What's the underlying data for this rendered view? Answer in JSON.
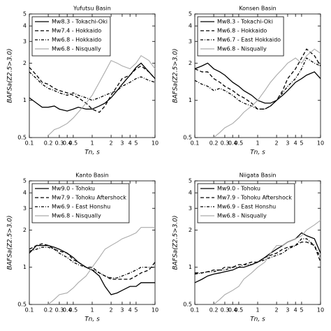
{
  "chart_data": [
    {
      "type": "line",
      "title": "Yufutsu Basin",
      "x_label": "Tn, s",
      "y_label": "BAFSa(Z2.5>3.0)",
      "xscale": "log",
      "yscale": "log",
      "legend": "upper left",
      "xlim": [
        0.1,
        10
      ],
      "ylim": [
        0.5,
        5
      ],
      "xticks": [
        0.1,
        0.2,
        0.3,
        0.4,
        0.5,
        1,
        2,
        3,
        4,
        5,
        10
      ],
      "yticks": [
        0.5,
        1,
        2,
        3,
        4,
        5
      ],
      "x": [
        0.1,
        0.13,
        0.16,
        0.2,
        0.25,
        0.3,
        0.4,
        0.5,
        0.6,
        0.8,
        1,
        1.3,
        1.6,
        2,
        2.5,
        3,
        4,
        5,
        6,
        8,
        10
      ],
      "series": [
        {
          "name": "Mw8.3 - Tokachi-Oki",
          "color": "#000000",
          "linestyle": "solid",
          "values": [
            1.05,
            0.95,
            0.88,
            0.88,
            0.9,
            0.85,
            0.82,
            0.85,
            0.88,
            0.85,
            0.85,
            0.9,
            0.95,
            1.05,
            1.2,
            1.35,
            1.6,
            1.85,
            2.0,
            1.7,
            1.5
          ]
        },
        {
          "name": "Mw7.4 - Hokkaido",
          "color": "#000000",
          "linestyle": "dashed",
          "values": [
            1.85,
            1.6,
            1.4,
            1.35,
            1.25,
            1.2,
            1.15,
            1.1,
            1.05,
            0.95,
            0.85,
            0.8,
            0.9,
            1.1,
            1.3,
            1.5,
            1.6,
            1.8,
            1.9,
            1.7,
            1.5
          ]
        },
        {
          "name": "Mw6.8 - Hokkaido",
          "color": "#000000",
          "linestyle": "dashdot",
          "values": [
            1.7,
            1.5,
            1.35,
            1.25,
            1.2,
            1.15,
            1.1,
            1.15,
            1.1,
            1.05,
            1.0,
            1.05,
            1.1,
            1.15,
            1.2,
            1.3,
            1.4,
            1.5,
            1.55,
            1.45,
            1.4
          ]
        },
        {
          "name": "Mw6.8 - Nisqually",
          "color": "#aaaaaa",
          "linestyle": "solid",
          "values": [
            null,
            null,
            null,
            0.52,
            0.58,
            0.6,
            0.65,
            0.72,
            0.8,
            0.95,
            1.1,
            1.4,
            1.7,
            2.1,
            2.0,
            1.9,
            1.8,
            2.0,
            2.3,
            2.1,
            1.8
          ]
        }
      ]
    },
    {
      "type": "line",
      "title": "Konsen Basin",
      "x_label": "Tn, s",
      "y_label": "BAFSa(Z2.5>3.0)",
      "xscale": "log",
      "yscale": "log",
      "legend": "upper left",
      "xlim": [
        0.1,
        10
      ],
      "ylim": [
        0.5,
        5
      ],
      "xticks": [
        0.1,
        0.2,
        0.3,
        0.4,
        0.5,
        1,
        2,
        3,
        4,
        5,
        10
      ],
      "yticks": [
        0.5,
        1,
        2,
        3,
        4,
        5
      ],
      "x": [
        0.1,
        0.13,
        0.16,
        0.2,
        0.25,
        0.3,
        0.4,
        0.5,
        0.6,
        0.8,
        1,
        1.3,
        1.6,
        2,
        2.5,
        3,
        4,
        5,
        6,
        8,
        10
      ],
      "series": [
        {
          "name": "Mw8.3 - Tokachi-Oki",
          "color": "#000000",
          "linestyle": "solid",
          "values": [
            1.8,
            1.9,
            2.0,
            1.8,
            1.7,
            1.6,
            1.4,
            1.3,
            1.2,
            1.1,
            1.0,
            0.95,
            0.95,
            1.0,
            1.1,
            1.2,
            1.4,
            1.5,
            1.6,
            1.7,
            1.5
          ]
        },
        {
          "name": "Mw6.8 - Hokkaido",
          "color": "#000000",
          "linestyle": "dashed",
          "values": [
            1.8,
            1.7,
            1.7,
            1.5,
            1.4,
            1.3,
            1.2,
            1.1,
            1.05,
            0.95,
            0.85,
            0.85,
            0.9,
            1.0,
            1.2,
            1.5,
            1.8,
            2.2,
            2.6,
            2.3,
            1.9
          ]
        },
        {
          "name": "Mw6.7 - East Hokkaido",
          "color": "#000000",
          "linestyle": "dashdot",
          "values": [
            1.45,
            1.35,
            1.3,
            1.2,
            1.25,
            1.2,
            1.1,
            1.0,
            0.95,
            0.9,
            0.85,
            0.85,
            0.9,
            1.0,
            1.15,
            1.3,
            1.5,
            1.8,
            2.2,
            2.0,
            1.9
          ]
        },
        {
          "name": "Mw6.8 - Nisqually",
          "color": "#aaaaaa",
          "linestyle": "solid",
          "values": [
            null,
            null,
            null,
            0.5,
            0.55,
            0.6,
            0.65,
            0.72,
            0.8,
            0.9,
            1.0,
            1.2,
            1.4,
            1.6,
            1.8,
            2.0,
            2.2,
            2.0,
            2.3,
            2.6,
            2.4
          ]
        }
      ]
    },
    {
      "type": "line",
      "title": "Kanto Basin",
      "x_label": "Tn, s",
      "y_label": "BAFSa(Z2.5>3.0)",
      "xscale": "log",
      "yscale": "log",
      "legend": "upper left",
      "xlim": [
        0.1,
        10
      ],
      "ylim": [
        0.5,
        5
      ],
      "xticks": [
        0.1,
        0.2,
        0.3,
        0.4,
        0.5,
        1,
        2,
        3,
        4,
        5,
        10
      ],
      "yticks": [
        0.5,
        1,
        2,
        3,
        4,
        5
      ],
      "x": [
        0.1,
        0.13,
        0.16,
        0.2,
        0.25,
        0.3,
        0.4,
        0.5,
        0.6,
        0.8,
        1,
        1.3,
        1.6,
        2,
        2.5,
        3,
        4,
        5,
        6,
        8,
        10
      ],
      "series": [
        {
          "name": "Mw9.0 - Tohoku",
          "color": "#000000",
          "linestyle": "solid",
          "values": [
            1.3,
            1.5,
            1.5,
            1.5,
            1.45,
            1.4,
            1.3,
            1.2,
            1.1,
            1.0,
            0.95,
            0.85,
            0.7,
            0.6,
            0.62,
            0.65,
            0.7,
            0.7,
            0.75,
            0.75,
            0.75
          ]
        },
        {
          "name": "Mw7.9 - Tohoku Aftershock",
          "color": "#000000",
          "linestyle": "dashed",
          "values": [
            1.4,
            1.5,
            1.55,
            1.5,
            1.4,
            1.35,
            1.3,
            1.15,
            1.1,
            1.0,
            1.0,
            0.9,
            0.85,
            0.8,
            0.8,
            0.8,
            0.8,
            0.85,
            0.9,
            0.95,
            1.1
          ]
        },
        {
          "name": "Mw6.9 - East Honshu",
          "color": "#000000",
          "linestyle": "dashdot",
          "values": [
            1.35,
            1.4,
            1.45,
            1.45,
            1.4,
            1.3,
            1.2,
            1.1,
            1.05,
            1.0,
            0.95,
            0.9,
            0.85,
            0.82,
            0.82,
            0.85,
            0.9,
            0.95,
            1.0,
            1.0,
            1.0
          ]
        },
        {
          "name": "Mw6.8 - Nisqually",
          "color": "#aaaaaa",
          "linestyle": "solid",
          "values": [
            null,
            null,
            null,
            0.5,
            0.55,
            0.6,
            0.62,
            0.68,
            0.75,
            0.85,
            1.0,
            1.2,
            1.4,
            1.5,
            1.6,
            1.7,
            1.8,
            1.9,
            2.1,
            2.1,
            2.1
          ]
        }
      ]
    },
    {
      "type": "line",
      "title": "Niigata Basin",
      "x_label": "Tn, s",
      "y_label": "BAFSa(Z2.5>3.0)",
      "xscale": "log",
      "yscale": "log",
      "legend": "upper left",
      "xlim": [
        0.1,
        10
      ],
      "ylim": [
        0.5,
        5
      ],
      "xticks": [
        0.1,
        0.2,
        0.3,
        0.4,
        0.5,
        1,
        2,
        3,
        4,
        5,
        10
      ],
      "yticks": [
        0.5,
        1,
        2,
        3,
        4,
        5
      ],
      "x": [
        0.1,
        0.13,
        0.16,
        0.2,
        0.25,
        0.3,
        0.4,
        0.5,
        0.6,
        0.8,
        1,
        1.3,
        1.6,
        2,
        2.5,
        3,
        4,
        5,
        6,
        8,
        10
      ],
      "series": [
        {
          "name": "Mw9.0 - Tohoku",
          "color": "#000000",
          "linestyle": "solid",
          "values": [
            0.75,
            0.8,
            0.85,
            0.88,
            0.9,
            0.92,
            0.95,
            1.0,
            1.0,
            1.05,
            1.1,
            1.2,
            1.3,
            1.4,
            1.5,
            1.6,
            1.7,
            1.9,
            1.8,
            1.7,
            1.3
          ]
        },
        {
          "name": "Mw7.9 - Tohoku Aftershock",
          "color": "#000000",
          "linestyle": "dashed",
          "values": [
            0.9,
            0.9,
            0.92,
            0.95,
            0.95,
            1.0,
            1.0,
            1.05,
            1.05,
            1.1,
            1.1,
            1.2,
            1.25,
            1.3,
            1.4,
            1.45,
            1.5,
            1.6,
            1.6,
            1.5,
            1.1
          ]
        },
        {
          "name": "Mw6.9 - East Honshu",
          "color": "#000000",
          "linestyle": "dashdot",
          "values": [
            0.88,
            0.9,
            0.92,
            0.92,
            0.95,
            0.95,
            1.0,
            1.0,
            1.05,
            1.05,
            1.1,
            1.15,
            1.2,
            1.25,
            1.3,
            1.4,
            1.5,
            1.7,
            1.7,
            1.5,
            1.2
          ]
        },
        {
          "name": "Mw6.8 - Nisqually",
          "color": "#aaaaaa",
          "linestyle": "solid",
          "values": [
            null,
            null,
            null,
            0.5,
            0.55,
            0.6,
            0.65,
            0.7,
            0.8,
            0.9,
            1.0,
            1.1,
            1.3,
            1.5,
            1.5,
            1.6,
            1.7,
            1.8,
            2.0,
            2.2,
            2.4
          ]
        }
      ]
    }
  ]
}
